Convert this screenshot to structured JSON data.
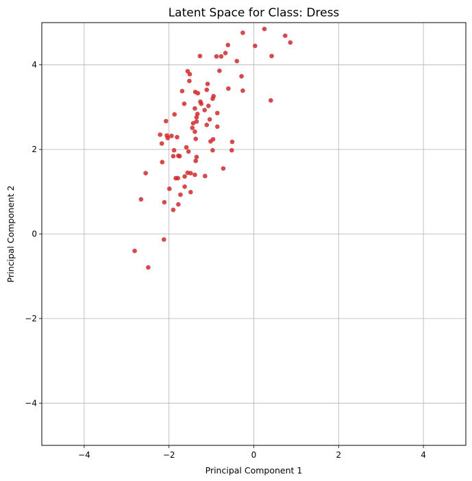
{
  "chart_data": {
    "type": "scatter",
    "title": "Latent Space for Class: Dress",
    "xlabel": "Principal Component 1",
    "ylabel": "Principal Component 2",
    "xlim": [
      -5,
      5
    ],
    "ylim": [
      -5,
      5
    ],
    "xticks": [
      -4,
      -2,
      0,
      2,
      4
    ],
    "yticks": [
      -4,
      -2,
      0,
      2,
      4
    ],
    "grid": true,
    "point_color": "#d62728",
    "series": [
      {
        "points": [
          [
            0.25,
            4.85
          ],
          [
            -0.26,
            4.76
          ],
          [
            0.74,
            4.69
          ],
          [
            0.86,
            4.53
          ],
          [
            0.03,
            4.45
          ],
          [
            -0.61,
            4.47
          ],
          [
            -0.67,
            4.28
          ],
          [
            -1.27,
            4.21
          ],
          [
            -0.88,
            4.2
          ],
          [
            -0.77,
            4.2
          ],
          [
            0.42,
            4.21
          ],
          [
            -0.4,
            4.09
          ],
          [
            -0.81,
            3.86
          ],
          [
            -1.56,
            3.85
          ],
          [
            -1.51,
            3.78
          ],
          [
            -0.29,
            3.73
          ],
          [
            -1.52,
            3.62
          ],
          [
            -1.09,
            3.55
          ],
          [
            -0.6,
            3.44
          ],
          [
            -1.11,
            3.41
          ],
          [
            -1.69,
            3.38
          ],
          [
            -0.26,
            3.39
          ],
          [
            -1.38,
            3.36
          ],
          [
            -1.32,
            3.33
          ],
          [
            -0.95,
            3.26
          ],
          [
            -0.97,
            3.2
          ],
          [
            0.4,
            3.16
          ],
          [
            -1.26,
            3.13
          ],
          [
            -1.24,
            3.08
          ],
          [
            -1.64,
            3.08
          ],
          [
            -1.07,
            3.03
          ],
          [
            -1.39,
            2.97
          ],
          [
            -1.16,
            2.93
          ],
          [
            -0.86,
            2.86
          ],
          [
            -1.33,
            2.84
          ],
          [
            -1.87,
            2.83
          ],
          [
            -1.35,
            2.76
          ],
          [
            -1.04,
            2.71
          ],
          [
            -1.35,
            2.66
          ],
          [
            -2.07,
            2.67
          ],
          [
            -1.43,
            2.62
          ],
          [
            -1.11,
            2.58
          ],
          [
            -0.86,
            2.54
          ],
          [
            -1.45,
            2.51
          ],
          [
            -1.39,
            2.42
          ],
          [
            -2.21,
            2.35
          ],
          [
            -2.05,
            2.33
          ],
          [
            -1.94,
            2.32
          ],
          [
            -2.03,
            2.27
          ],
          [
            -1.81,
            2.29
          ],
          [
            -1.37,
            2.25
          ],
          [
            -0.96,
            2.24
          ],
          [
            -1.02,
            2.19
          ],
          [
            -0.51,
            2.18
          ],
          [
            -2.17,
            2.14
          ],
          [
            -1.59,
            2.05
          ],
          [
            -1.88,
            1.98
          ],
          [
            -1.54,
            1.95
          ],
          [
            -0.97,
            1.98
          ],
          [
            -0.52,
            1.98
          ],
          [
            -1.9,
            1.84
          ],
          [
            -1.78,
            1.85
          ],
          [
            -1.75,
            1.84
          ],
          [
            -1.35,
            1.82
          ],
          [
            -1.37,
            1.73
          ],
          [
            -2.16,
            1.7
          ],
          [
            -0.72,
            1.55
          ],
          [
            -2.55,
            1.44
          ],
          [
            -1.56,
            1.45
          ],
          [
            -1.49,
            1.44
          ],
          [
            -1.39,
            1.4
          ],
          [
            -1.63,
            1.36
          ],
          [
            -1.15,
            1.37
          ],
          [
            -1.84,
            1.32
          ],
          [
            -1.79,
            1.32
          ],
          [
            -1.63,
            1.12
          ],
          [
            -1.99,
            1.07
          ],
          [
            -1.49,
            0.99
          ],
          [
            -1.73,
            0.93
          ],
          [
            -2.66,
            0.82
          ],
          [
            -2.11,
            0.75
          ],
          [
            -1.78,
            0.7
          ],
          [
            -1.9,
            0.57
          ],
          [
            -2.12,
            -0.13
          ],
          [
            -2.81,
            -0.4
          ],
          [
            -2.49,
            -0.79
          ]
        ]
      }
    ]
  }
}
